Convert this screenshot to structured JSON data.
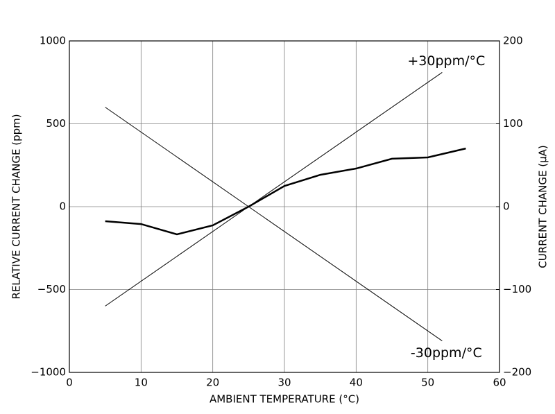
{
  "chart_data": {
    "type": "line",
    "x_label": "AMBIENT TEMPERATURE (°C)",
    "y_label": "RELATIVE CURRENT CHANGE (ppm)",
    "y2_label": "CURRENT CHANGE (µA)",
    "xlim": [
      0,
      60
    ],
    "xticks": [
      0,
      10,
      20,
      30,
      40,
      50,
      60
    ],
    "ylim": [
      -1000,
      1000
    ],
    "yticks": [
      {
        "value": -1000,
        "label": "−1000"
      },
      {
        "value": -500,
        "label": "−500"
      },
      0,
      500,
      1000
    ],
    "y2lim": [
      -200,
      200
    ],
    "y2ticks": [
      {
        "value": -200,
        "label": "−200"
      },
      {
        "value": -100,
        "label": "−100"
      },
      0,
      100,
      200
    ],
    "grid": true,
    "series": [
      {
        "color": "#000000",
        "line_width": 2.5,
        "x": [
          5,
          10,
          15,
          20,
          25,
          30,
          35,
          40,
          45,
          50,
          55.3
        ],
        "values": [
          -88,
          -105,
          -167,
          -113,
          0,
          125,
          192,
          230,
          289,
          297,
          351
        ]
      },
      {
        "name": "+30ppm/°C",
        "color": "#000000",
        "line_width": 1,
        "x": [
          5,
          52
        ],
        "values": [
          -600,
          810
        ]
      },
      {
        "name": "-30ppm/°C",
        "color": "#000000",
        "line_width": 1,
        "x": [
          5,
          52
        ],
        "values": [
          600,
          -810
        ]
      }
    ]
  }
}
